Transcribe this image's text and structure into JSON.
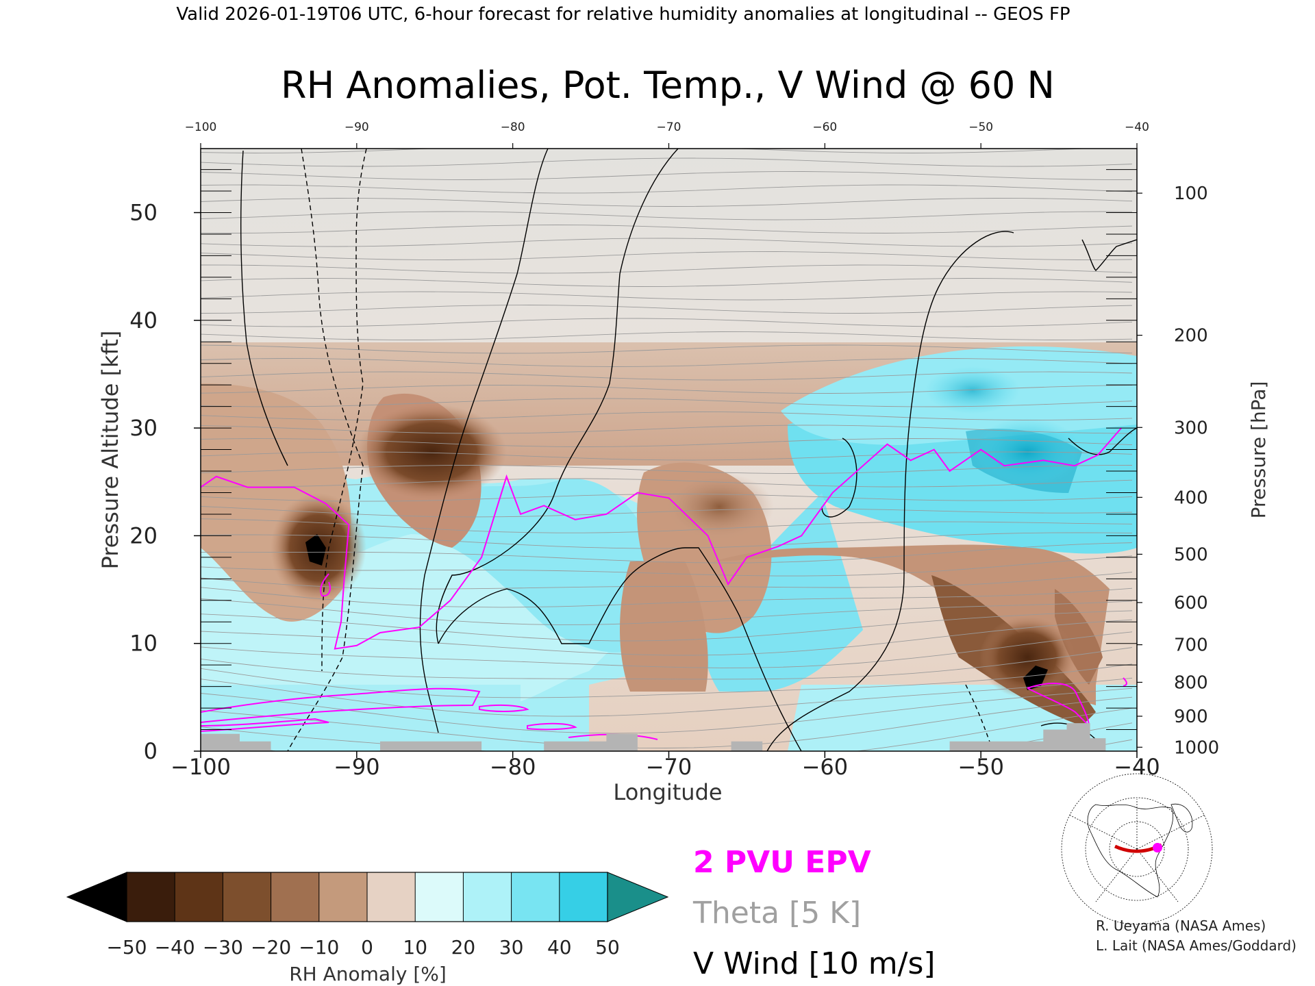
{
  "header": {
    "top_title": "Valid 2026-01-19T06 UTC, 6-hour forecast for relative humidity anomalies at longitudinal -- GEOS FP",
    "main_title": "RH Anomalies, Pot. Temp., V Wind @ 60 N"
  },
  "legend_text": {
    "epv": "2 PVU EPV",
    "theta": "Theta [5 K]",
    "vwind": "V Wind [10 m/s]"
  },
  "credits": {
    "line1": "R. Ueyama (NASA Ames)",
    "line2": "L. Lait (NASA Ames/Goddard)"
  },
  "colors": {
    "epv": "#ff00ff",
    "theta": "#9a9a9a",
    "vwind": "#000000",
    "terrain": "#b4b4b4"
  },
  "chart_data": {
    "type": "heatmap",
    "xlabel": "Longitude",
    "ylabel": "Pressure Altitude [kft]",
    "y2label": "Pressure [hPa]",
    "xlim": [
      -100,
      -40
    ],
    "ylim": [
      0,
      56
    ],
    "x_ticks": [
      -100,
      -90,
      -80,
      -70,
      -60,
      -50,
      -40
    ],
    "x_tick_labels": [
      "−100",
      "−90",
      "−80",
      "−70",
      "−60",
      "−50",
      "−40"
    ],
    "y_ticks": [
      0,
      10,
      20,
      30,
      40,
      50
    ],
    "pressure_ticks": [
      1000,
      900,
      800,
      700,
      600,
      500,
      400,
      300,
      200,
      100
    ],
    "colorbar": {
      "label": "RH Anomaly [%]",
      "ticks": [
        -50,
        -40,
        -30,
        -20,
        -10,
        0,
        10,
        20,
        30,
        40,
        50
      ],
      "tick_labels": [
        "−50",
        "−40",
        "−30",
        "−20",
        "−10",
        "0",
        "10",
        "20",
        "30",
        "40",
        "50"
      ],
      "colors": [
        "#3a1d0c",
        "#5e3417",
        "#7d4f2d",
        "#a07050",
        "#c49a7c",
        "#e6d2c4",
        "#dcfafa",
        "#aef2f8",
        "#78e4f2",
        "#36cfe6",
        "#12a9c4"
      ],
      "under_color": "#000000",
      "over_color": "#1a8f8a"
    },
    "series": [
      {
        "name": "2 PVU EPV",
        "points": [
          [
            -100,
            24.5
          ],
          [
            -99,
            25.5
          ],
          [
            -97,
            24.5
          ],
          [
            -94,
            24.5
          ],
          [
            -92,
            23
          ],
          [
            -90.5,
            21
          ],
          [
            -90.8,
            16
          ],
          [
            -91,
            12
          ],
          [
            -91.4,
            9.5
          ],
          [
            -90,
            9.8
          ],
          [
            -88.5,
            11
          ],
          [
            -86,
            11.5
          ],
          [
            -84,
            14
          ],
          [
            -82,
            18
          ],
          [
            -80.4,
            25.5
          ],
          [
            -79.5,
            22
          ],
          [
            -78,
            22.8
          ],
          [
            -76,
            21.5
          ],
          [
            -74,
            22
          ],
          [
            -72,
            24
          ],
          [
            -70,
            23.5
          ],
          [
            -67.5,
            20
          ],
          [
            -66.2,
            15.5
          ],
          [
            -65,
            18
          ],
          [
            -63,
            19
          ],
          [
            -61.5,
            20
          ],
          [
            -59.5,
            24
          ],
          [
            -56,
            28.5
          ],
          [
            -54.5,
            27
          ],
          [
            -53,
            28
          ],
          [
            -52,
            26
          ],
          [
            -50,
            28
          ],
          [
            -48.5,
            26.5
          ],
          [
            -46,
            27
          ],
          [
            -44,
            26.5
          ],
          [
            -42.5,
            27.5
          ],
          [
            -41,
            30
          ]
        ]
      }
    ],
    "terrain": [
      [
        -100,
        1.6
      ],
      [
        -97.5,
        1.6
      ],
      [
        -97.5,
        0.9
      ],
      [
        -95.5,
        0.9
      ],
      [
        -95.5,
        0
      ],
      [
        -88.5,
        0
      ],
      [
        -88.5,
        0.9
      ],
      [
        -82,
        0.9
      ],
      [
        -82,
        0
      ],
      [
        -78,
        0
      ],
      [
        -78,
        0.9
      ],
      [
        -74,
        0.9
      ],
      [
        -74,
        1.6
      ],
      [
        -72,
        1.6
      ],
      [
        -72,
        0
      ],
      [
        -66,
        0
      ],
      [
        -66,
        0.9
      ],
      [
        -64,
        0.9
      ],
      [
        -64,
        0
      ],
      [
        -52,
        0
      ],
      [
        -52,
        0.9
      ],
      [
        -46,
        0.9
      ],
      [
        -46,
        2
      ],
      [
        -44.5,
        2
      ],
      [
        -44.5,
        2.6
      ],
      [
        -43,
        2.6
      ],
      [
        -43,
        1.2
      ],
      [
        -42,
        1.2
      ],
      [
        -42,
        0
      ],
      [
        -40,
        0
      ]
    ]
  }
}
